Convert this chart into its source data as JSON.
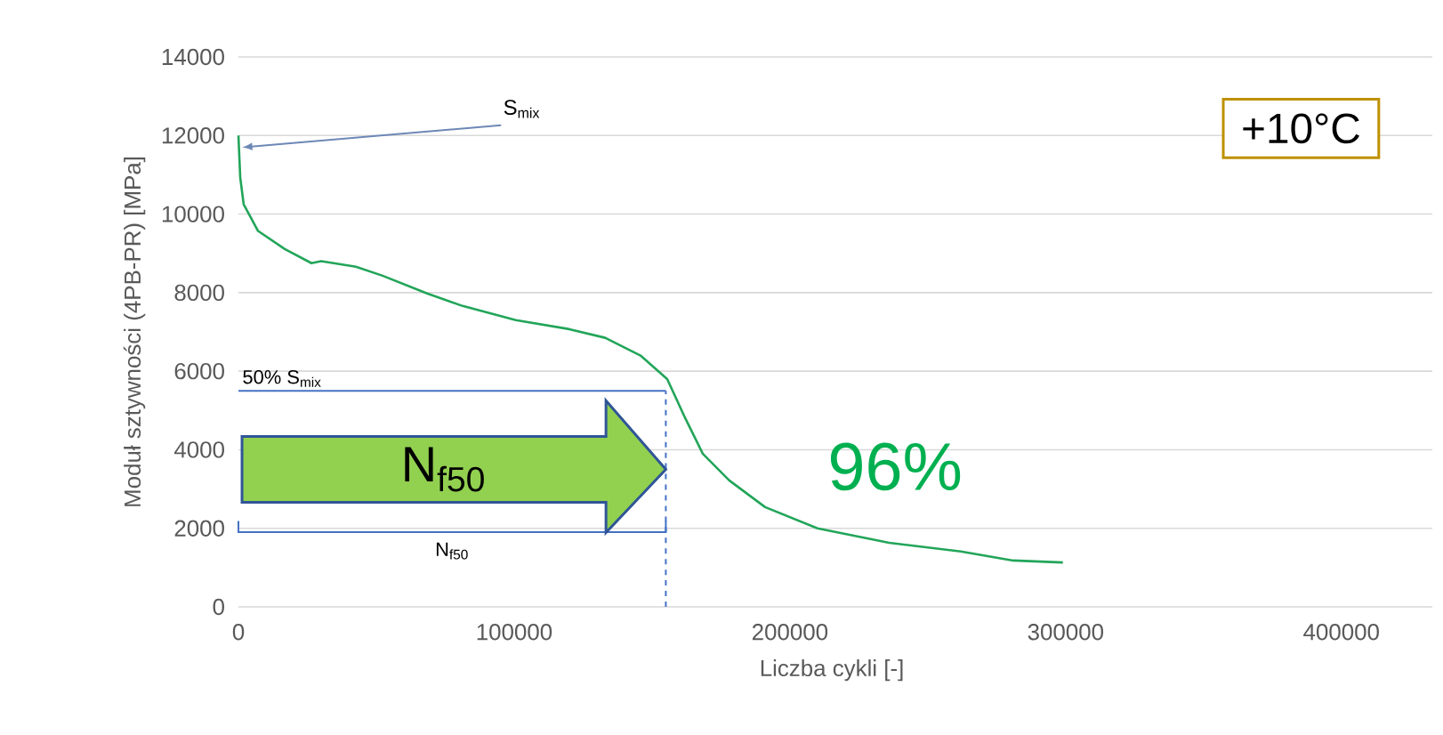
{
  "chart_data": {
    "type": "line",
    "xlabel": "Liczba cykli [-]",
    "ylabel": "Moduł sztywności (4PB-PR) [MPa]",
    "x": [
      0,
      650,
      1900,
      7100,
      16800,
      26500,
      30000,
      42600,
      52300,
      68400,
      81300,
      100600,
      120000,
      133000,
      146000,
      155500,
      162000,
      168400,
      178000,
      191000,
      210000,
      236000,
      262000,
      281000,
      299000
    ],
    "values": [
      12000,
      10930,
      10250,
      9570,
      9110,
      8750,
      8800,
      8660,
      8430,
      7980,
      7660,
      7300,
      7070,
      6850,
      6390,
      5800,
      4810,
      3900,
      3220,
      2540,
      2000,
      1630,
      1410,
      1180,
      1130
    ],
    "color": "#22a559",
    "marker": "none",
    "line_style": "solid",
    "grid": "y",
    "xlim": [
      0,
      433000
    ],
    "xticks": [
      0,
      100000,
      200000,
      300000,
      400000
    ],
    "ylim": [
      0,
      14000
    ],
    "yticks": [
      0,
      2000,
      4000,
      6000,
      8000,
      10000,
      12000,
      14000
    ],
    "ref_lines": [
      {
        "axis": "y",
        "value": 5500,
        "label": "50% S$_{mix}$",
        "color": "#4472c4",
        "line_style": "solid"
      },
      {
        "axis": "x",
        "value": 155000,
        "color": "#4472c4",
        "line_style": "dashed"
      }
    ],
    "annotations": [
      {
        "text": "S$_{mix}$",
        "x": 0,
        "y": 11700
      },
      "N$_{f50}$",
      "96%",
      "+10°C",
      "N$_{f50}$"
    ]
  }
}
